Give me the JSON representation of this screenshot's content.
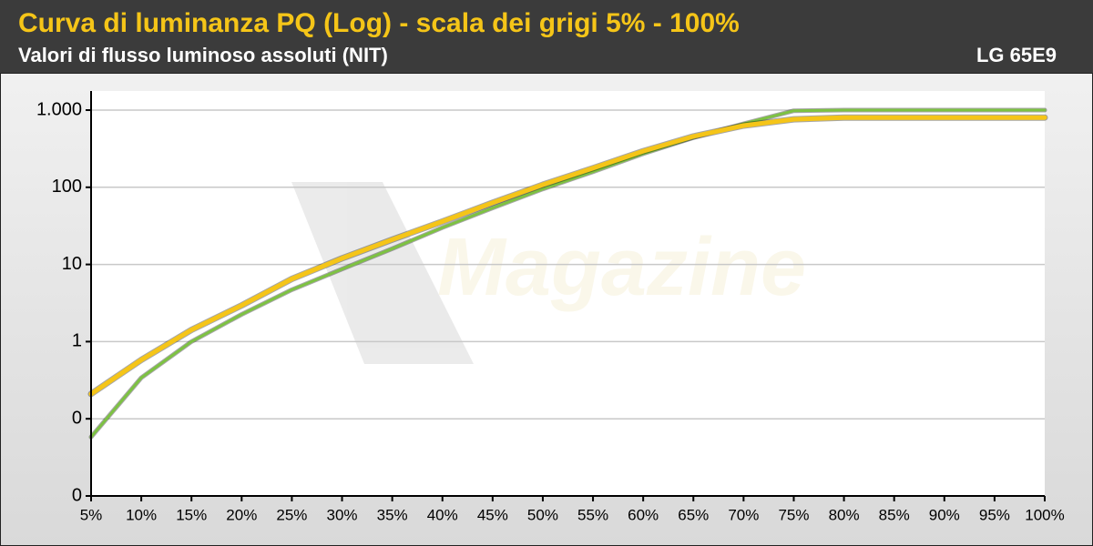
{
  "chart_data": {
    "type": "line",
    "title": "Curva di luminanza PQ (Log) - scala dei grigi 5% - 100%",
    "subtitle": "Valori di flusso luminoso assoluti (NIT)",
    "annotation": "LG 65E9",
    "categories": [
      "5%",
      "10%",
      "15%",
      "20%",
      "25%",
      "30%",
      "35%",
      "40%",
      "45%",
      "50%",
      "55%",
      "60%",
      "65%",
      "70%",
      "75%",
      "80%",
      "85%",
      "90%",
      "95%",
      "100%"
    ],
    "series": [
      {
        "color": "#7dc242",
        "values": [
          0.058,
          0.34,
          1.0,
          2.25,
          4.7,
          8.7,
          16,
          30,
          54,
          95,
          159,
          272,
          440,
          665,
          980,
          1000,
          1000,
          1000,
          1000,
          1000
        ]
      },
      {
        "color": "#f5c518",
        "values": [
          0.21,
          0.58,
          1.42,
          2.95,
          6.5,
          12,
          21,
          36,
          63,
          108,
          177,
          294,
          456,
          630,
          760,
          800,
          800,
          800,
          800,
          800
        ]
      }
    ],
    "log_scale": true,
    "ylim": [
      0.01,
      1000
    ],
    "yticks": [
      {
        "value": 0.01,
        "label": "0"
      },
      {
        "value": 0.1,
        "label": "0"
      },
      1,
      10,
      100,
      {
        "value": 1000,
        "label": "1.000"
      }
    ],
    "grid": true
  }
}
